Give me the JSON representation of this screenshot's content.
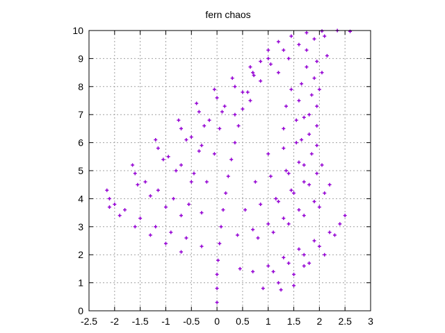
{
  "chart_data": {
    "type": "scatter",
    "title": "fern chaos",
    "xlabel": "",
    "ylabel": "",
    "xlim": [
      -2.5,
      3
    ],
    "ylim": [
      0,
      10
    ],
    "xticks": [
      -2.5,
      -2,
      -1.5,
      -1,
      -0.5,
      0,
      0.5,
      1,
      1.5,
      2,
      2.5,
      3
    ],
    "xtick_labels": [
      "-2.5",
      "-2",
      "-1.5",
      "-1",
      "-0.5",
      "0",
      "0.5",
      "1",
      "1.5",
      "2",
      "2.5",
      "3"
    ],
    "yticks": [
      0,
      1,
      2,
      3,
      4,
      5,
      6,
      7,
      8,
      9,
      10
    ],
    "ytick_labels": [
      "0",
      "1",
      "2",
      "3",
      "4",
      "5",
      "6",
      "7",
      "8",
      "9",
      "10"
    ],
    "grid": true,
    "legend": "none",
    "marker": "plus",
    "series": [
      {
        "color": "#9400d3",
        "points": [
          [
            0.0,
            0.3
          ],
          [
            0.0,
            0.8
          ],
          [
            0.0,
            1.3
          ],
          [
            0.02,
            1.8
          ],
          [
            0.05,
            2.4
          ],
          [
            0.08,
            3.0
          ],
          [
            0.12,
            3.6
          ],
          [
            0.17,
            4.2
          ],
          [
            0.22,
            4.8
          ],
          [
            0.28,
            5.4
          ],
          [
            0.35,
            6.0
          ],
          [
            0.42,
            6.6
          ],
          [
            0.5,
            7.2
          ],
          [
            0.6,
            7.8
          ],
          [
            0.72,
            8.4
          ],
          [
            0.85,
            8.9
          ],
          [
            1.0,
            9.3
          ],
          [
            1.2,
            9.6
          ],
          [
            1.45,
            9.8
          ],
          [
            1.75,
            9.92
          ],
          [
            2.05,
            9.98
          ],
          [
            2.35,
            10.0
          ],
          [
            2.6,
            9.97
          ],
          [
            -2.15,
            4.3
          ],
          [
            -2.1,
            4.0
          ],
          [
            -2.0,
            3.8
          ],
          [
            -1.8,
            3.6
          ],
          [
            -1.5,
            3.3
          ],
          [
            -1.2,
            3.0
          ],
          [
            -0.9,
            2.8
          ],
          [
            -0.6,
            2.6
          ],
          [
            -0.3,
            2.3
          ],
          [
            -2.1,
            3.7
          ],
          [
            -1.9,
            3.4
          ],
          [
            -1.6,
            3.0
          ],
          [
            -1.3,
            2.7
          ],
          [
            -1.0,
            2.4
          ],
          [
            -0.7,
            2.1
          ],
          [
            -1.65,
            5.2
          ],
          [
            -1.6,
            4.9
          ],
          [
            -1.4,
            4.6
          ],
          [
            -1.15,
            4.3
          ],
          [
            -0.85,
            4.0
          ],
          [
            -0.55,
            3.8
          ],
          [
            -0.3,
            3.5
          ],
          [
            -1.55,
            4.5
          ],
          [
            -1.3,
            4.1
          ],
          [
            -1.0,
            3.7
          ],
          [
            -0.7,
            3.4
          ],
          [
            -1.2,
            6.1
          ],
          [
            -1.15,
            5.8
          ],
          [
            -0.95,
            5.5
          ],
          [
            -0.7,
            5.2
          ],
          [
            -0.45,
            4.9
          ],
          [
            -0.2,
            4.6
          ],
          [
            -1.05,
            5.4
          ],
          [
            -0.8,
            5.0
          ],
          [
            -0.5,
            4.6
          ],
          [
            -0.75,
            6.8
          ],
          [
            -0.7,
            6.5
          ],
          [
            -0.5,
            6.2
          ],
          [
            -0.3,
            5.9
          ],
          [
            -0.05,
            5.6
          ],
          [
            -0.6,
            6.1
          ],
          [
            -0.35,
            5.7
          ],
          [
            -0.4,
            7.4
          ],
          [
            -0.35,
            7.1
          ],
          [
            -0.15,
            6.8
          ],
          [
            0.05,
            6.5
          ],
          [
            -0.25,
            6.6
          ],
          [
            -0.05,
            7.9
          ],
          [
            0.0,
            7.6
          ],
          [
            0.15,
            7.3
          ],
          [
            0.35,
            7.0
          ],
          [
            0.1,
            7.1
          ],
          [
            0.3,
            8.3
          ],
          [
            0.35,
            8.0
          ],
          [
            0.5,
            7.8
          ],
          [
            0.65,
            7.5
          ],
          [
            0.65,
            8.7
          ],
          [
            0.7,
            8.5
          ],
          [
            0.85,
            8.2
          ],
          [
            1.0,
            9.0
          ],
          [
            1.05,
            8.8
          ],
          [
            1.2,
            8.5
          ],
          [
            1.3,
            9.3
          ],
          [
            1.4,
            9.0
          ],
          [
            1.6,
            9.5
          ],
          [
            1.75,
            9.3
          ],
          [
            1.9,
            9.7
          ],
          [
            2.1,
            9.8
          ],
          [
            2.5,
            3.4
          ],
          [
            2.4,
            3.1
          ],
          [
            2.2,
            2.8
          ],
          [
            1.9,
            2.5
          ],
          [
            1.6,
            2.2
          ],
          [
            1.3,
            1.9
          ],
          [
            1.0,
            1.6
          ],
          [
            0.7,
            1.4
          ],
          [
            2.3,
            2.7
          ],
          [
            2.0,
            2.3
          ],
          [
            1.7,
            2.0
          ],
          [
            1.4,
            1.7
          ],
          [
            1.1,
            1.4
          ],
          [
            2.1,
            2.0
          ],
          [
            1.8,
            1.7
          ],
          [
            1.5,
            1.3
          ],
          [
            1.2,
            1.0
          ],
          [
            0.9,
            0.8
          ],
          [
            1.5,
            0.9
          ],
          [
            1.25,
            0.75
          ],
          [
            1.7,
            1.6
          ],
          [
            0.45,
            1.5
          ],
          [
            2.2,
            4.5
          ],
          [
            2.1,
            4.2
          ],
          [
            1.9,
            3.9
          ],
          [
            1.6,
            3.6
          ],
          [
            1.3,
            3.3
          ],
          [
            1.0,
            3.1
          ],
          [
            0.7,
            2.9
          ],
          [
            0.4,
            2.7
          ],
          [
            2.0,
            3.7
          ],
          [
            1.7,
            3.4
          ],
          [
            1.4,
            3.1
          ],
          [
            1.1,
            2.8
          ],
          [
            0.8,
            2.6
          ],
          [
            2.05,
            5.2
          ],
          [
            1.95,
            4.9
          ],
          [
            1.7,
            4.6
          ],
          [
            1.45,
            4.3
          ],
          [
            1.15,
            4.0
          ],
          [
            0.85,
            3.8
          ],
          [
            0.55,
            3.6
          ],
          [
            1.8,
            4.5
          ],
          [
            1.5,
            4.2
          ],
          [
            1.2,
            3.9
          ],
          [
            1.95,
            5.9
          ],
          [
            1.85,
            5.6
          ],
          [
            1.6,
            5.3
          ],
          [
            1.35,
            5.0
          ],
          [
            1.05,
            4.8
          ],
          [
            0.75,
            4.6
          ],
          [
            1.7,
            5.2
          ],
          [
            1.4,
            4.9
          ],
          [
            1.95,
            6.6
          ],
          [
            1.8,
            6.3
          ],
          [
            1.55,
            6.0
          ],
          [
            1.3,
            5.8
          ],
          [
            1.0,
            5.6
          ],
          [
            1.65,
            6.1
          ],
          [
            1.95,
            7.3
          ],
          [
            1.8,
            7.0
          ],
          [
            1.55,
            6.8
          ],
          [
            1.3,
            6.5
          ],
          [
            1.7,
            6.9
          ],
          [
            2.0,
            7.9
          ],
          [
            1.85,
            7.7
          ],
          [
            1.6,
            7.5
          ],
          [
            1.35,
            7.3
          ],
          [
            2.05,
            8.5
          ],
          [
            1.9,
            8.3
          ],
          [
            1.65,
            8.1
          ],
          [
            1.45,
            7.9
          ],
          [
            2.15,
            9.1
          ],
          [
            1.95,
            8.9
          ],
          [
            1.75,
            8.7
          ]
        ]
      }
    ]
  }
}
